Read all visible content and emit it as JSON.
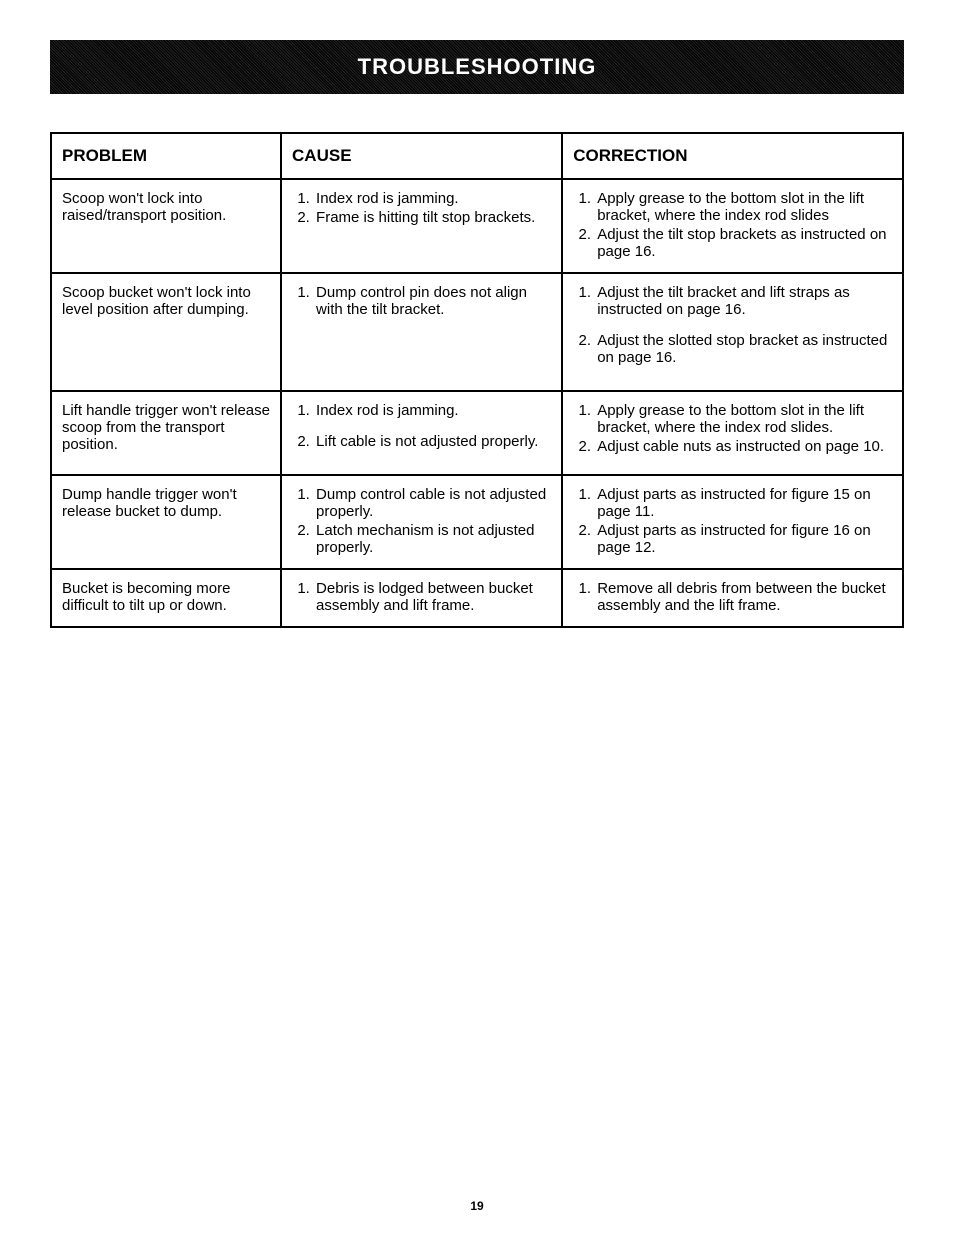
{
  "banner_title": "TROUBLESHOOTING",
  "page_number": "19",
  "table": {
    "headers": {
      "problem": "PROBLEM",
      "cause": "CAUSE",
      "correction": "CORRECTION"
    },
    "rows": [
      {
        "problem": "Scoop won't lock into raised/transport position.",
        "causes": [
          "Index rod is jamming.",
          "Frame is hitting tilt stop brackets."
        ],
        "corrections": [
          "Apply grease to the bottom slot in the lift bracket, where the index rod slides",
          "Adjust the tilt stop brackets as instructed on page 16."
        ]
      },
      {
        "problem": "Scoop bucket won't lock into level position after dumping.",
        "causes": [
          "Dump control pin does not align with the tilt bracket."
        ],
        "corrections": [
          "Adjust the tilt bracket and lift straps as instructed on page 16.",
          "Adjust the slotted stop bracket as instructed on page 16."
        ],
        "correction_spaced": true
      },
      {
        "problem": "Lift handle trigger won't release scoop from the transport position.",
        "causes": [
          "Index rod is jamming.",
          "Lift cable is not adjusted properly."
        ],
        "cause_spaced": true,
        "corrections": [
          "Apply grease to the bottom slot in the lift bracket, where the index rod slides.",
          "Adjust cable nuts as instructed on page 10."
        ]
      },
      {
        "problem": "Dump handle trigger won't release bucket to dump.",
        "causes": [
          "Dump control cable is not adjusted properly.",
          "Latch mechanism is not adjusted properly."
        ],
        "corrections": [
          "Adjust parts as instructed for figure 15 on page 11.",
          "Adjust parts as instructed for figure 16 on page 12."
        ]
      },
      {
        "problem": "Bucket is becoming more difficult to tilt up or down.",
        "causes": [
          "Debris is lodged between bucket assembly and lift frame."
        ],
        "corrections": [
          "Remove all debris from between the bucket assembly and the lift frame."
        ]
      }
    ]
  }
}
